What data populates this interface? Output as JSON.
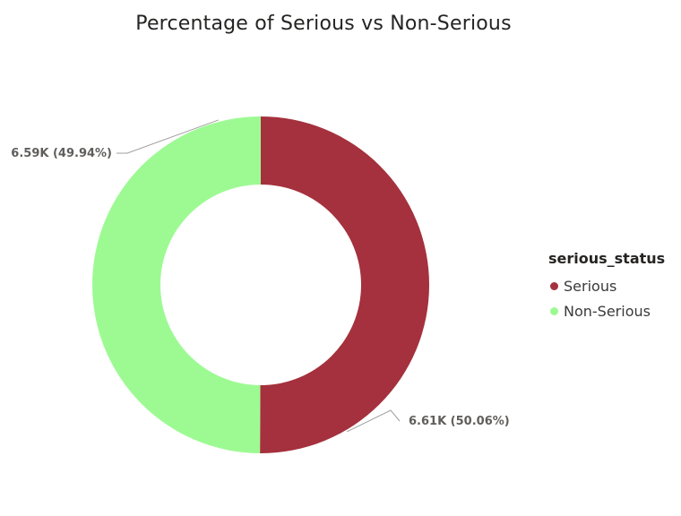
{
  "chart_data": {
    "type": "pie",
    "subtype": "donut",
    "title": "Percentage of Serious vs Non-Serious",
    "legend": {
      "title": "serious_status",
      "placement": "right"
    },
    "slices": [
      {
        "name": "Serious",
        "value": 6610,
        "percent": 50.06,
        "label": "6.61K (50.06%)",
        "color": "#a4313d"
      },
      {
        "name": "Non-Serious",
        "value": 6590,
        "percent": 49.94,
        "label": "6.59K (49.94%)",
        "color": "#9dfa93"
      }
    ]
  }
}
